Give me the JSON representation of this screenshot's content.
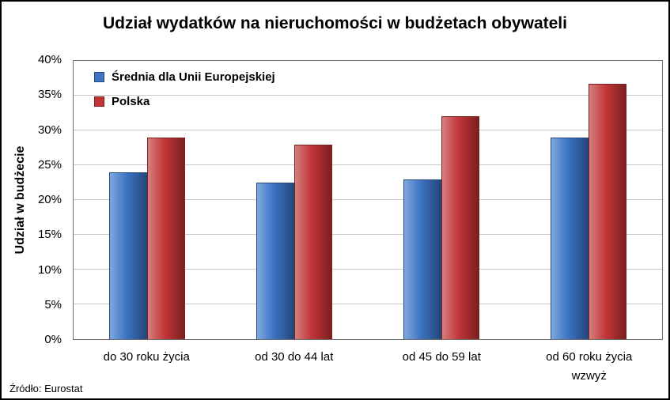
{
  "source": "Źródło: Eurostat",
  "chart_data": {
    "type": "bar",
    "title": "Udział wydatków na nieruchomości w budżetach obywateli",
    "xlabel": "",
    "ylabel": "Udział w budżecie",
    "ylim": [
      0,
      40
    ],
    "ytick_step": 5,
    "ytick_suffix": "%",
    "grid": true,
    "legend_position": "top-left",
    "categories": [
      "do 30 roku życia",
      "od 30 do 44 lat",
      "od 45 do 59 lat",
      "od 60 roku życia wzwyż"
    ],
    "series": [
      {
        "name": "Średnia dla Unii Europejskiej",
        "color": "#3d74c4",
        "color_light": "#7fa8de",
        "color_dark": "#24477c",
        "values": [
          24,
          22.5,
          23,
          29
        ]
      },
      {
        "name": "Polska",
        "color": "#c23638",
        "color_light": "#d4807f",
        "color_dark": "#7c1f20",
        "values": [
          29,
          28,
          32,
          36.7
        ]
      }
    ]
  }
}
